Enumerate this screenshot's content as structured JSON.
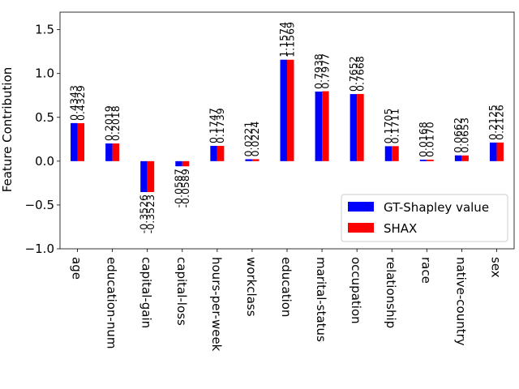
{
  "chart_data": {
    "type": "bar",
    "title": "",
    "xlabel": "",
    "ylabel": "Feature Contribution",
    "ylim": [
      -1.0,
      1.7
    ],
    "yticks": [
      -1.0,
      -0.5,
      0.0,
      0.5,
      1.0,
      1.5
    ],
    "ytick_labels": [
      "−1.0",
      "−0.5",
      "0.0",
      "0.5",
      "1.0",
      "1.5"
    ],
    "grid": false,
    "legend_position": "bottom-right",
    "categories": [
      "age",
      "education-num",
      "capital-gain",
      "capital-loss",
      "hours-per-week",
      "workclass",
      "education",
      "marital-status",
      "occupation",
      "relationship",
      "race",
      "native-country",
      "sex"
    ],
    "series": [
      {
        "name": "GT-Shapley value",
        "color": "#0000ff",
        "values": [
          0.4343,
          0.2019,
          -0.3526,
          -0.0587,
          0.1747,
          0.0221,
          1.1574,
          0.7938,
          0.7652,
          0.1705,
          0.0168,
          0.0662,
          0.2125
        ],
        "labels": [
          "0.4343",
          "0.2019",
          "-0.3526",
          "-0.0587",
          "0.1747",
          "0.0221",
          "1.1574",
          "0.7938",
          "0.7652",
          "0.1705",
          "0.0168",
          "0.0662",
          "0.2125"
        ]
      },
      {
        "name": "SHAX",
        "color": "#ff0000",
        "values": [
          0.4329,
          0.2018,
          -0.3523,
          -0.0589,
          0.1739,
          0.0224,
          1.1569,
          0.7977,
          0.7668,
          0.1711,
          0.017,
          0.0653,
          0.2126
        ],
        "labels": [
          "0.4329",
          "0.2018",
          "-0.3523",
          "-0.0589",
          "0.1739",
          "0.0224",
          "1.1569",
          "0.7977",
          "0.7668",
          "0.1711",
          "0.0170",
          "0.0653",
          "0.2126"
        ]
      }
    ]
  }
}
